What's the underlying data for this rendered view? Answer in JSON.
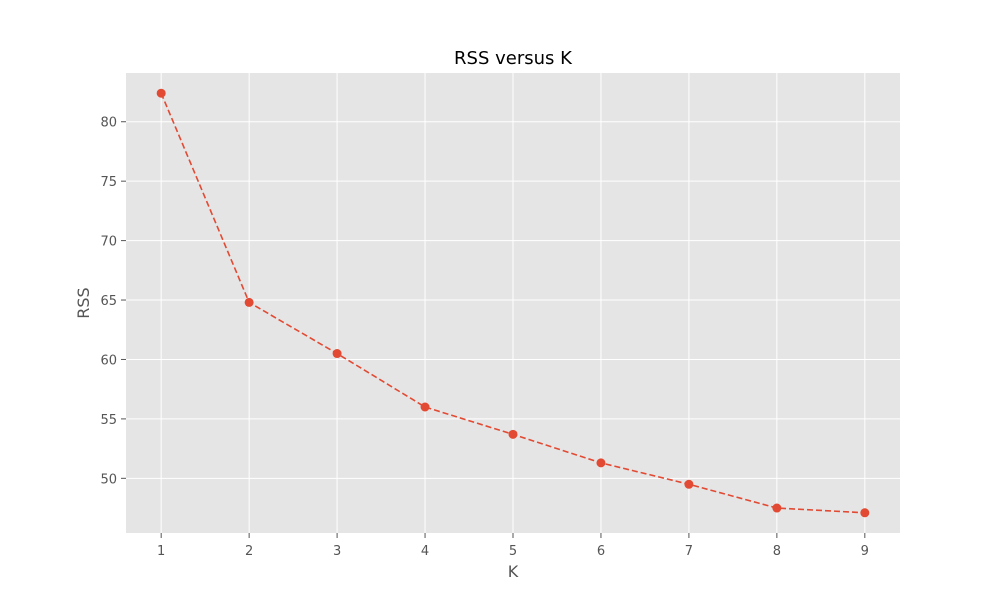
{
  "chart_data": {
    "type": "line",
    "title": "RSS versus K",
    "xlabel": "K",
    "ylabel": "RSS",
    "x": [
      1,
      2,
      3,
      4,
      5,
      6,
      7,
      8,
      9
    ],
    "series": [
      {
        "values": [
          82.4,
          64.8,
          60.5,
          56.0,
          53.7,
          51.3,
          49.5,
          47.5,
          47.1
        ],
        "color": "#e24a33",
        "line_style": "dashed",
        "marker": "circle"
      }
    ],
    "xlim": [
      0.6,
      9.4
    ],
    "ylim": [
      45.4,
      84.1
    ],
    "xticks": [
      1,
      2,
      3,
      4,
      5,
      6,
      7,
      8,
      9
    ],
    "yticks": [
      50,
      55,
      60,
      65,
      70,
      75,
      80
    ],
    "grid": true,
    "legend": "none",
    "style": "ggplot"
  }
}
